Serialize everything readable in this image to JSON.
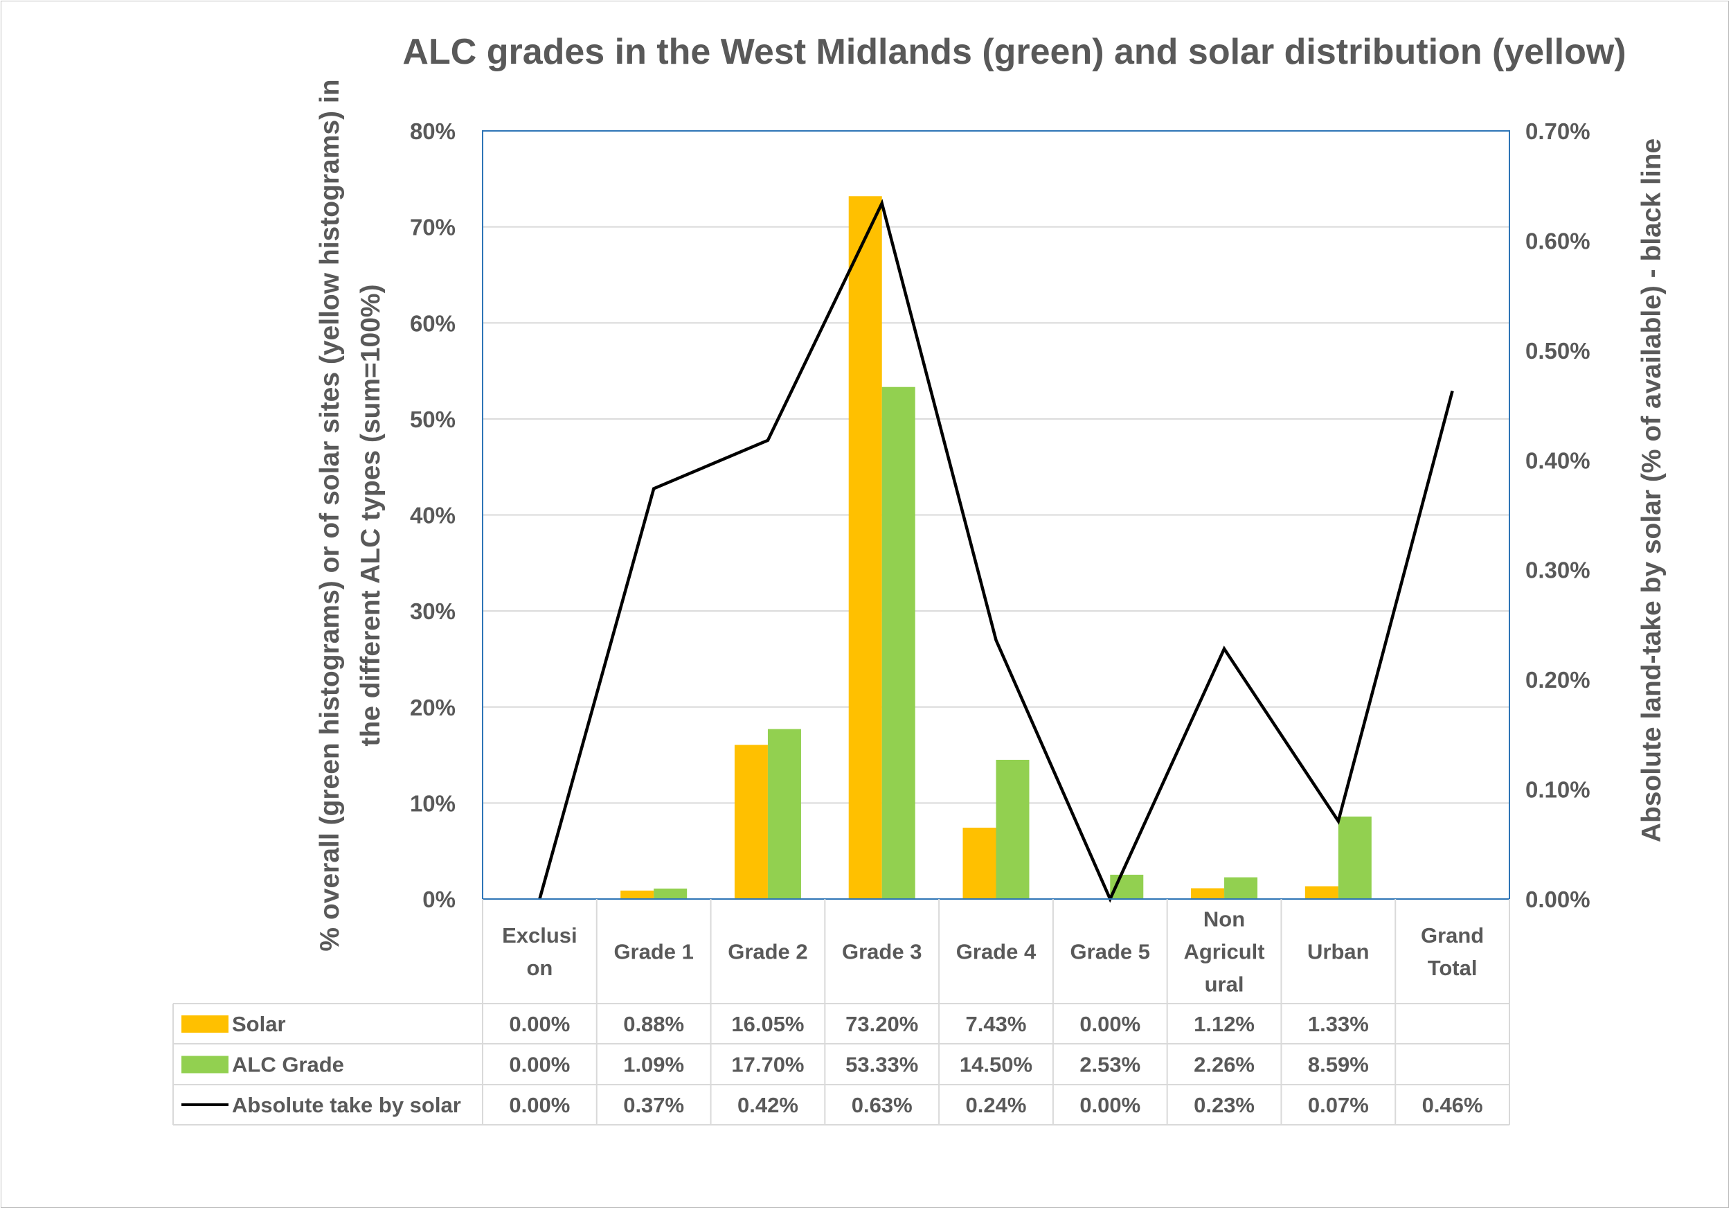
{
  "chart_data": {
    "type": "bar",
    "title": "ALC grades in the West Midlands (green) and solar distribution (yellow)",
    "ylabel": [
      "% overall (green histograms) or of solar sites (yellow histograms) in",
      "the different ALC types (sum=100%)"
    ],
    "y2label": "Absolute land-take by solar (% of available) - black line",
    "ylim": [
      0,
      80
    ],
    "y2lim": [
      0,
      0.7
    ],
    "yticks": [
      "0%",
      "10%",
      "20%",
      "30%",
      "40%",
      "50%",
      "60%",
      "70%",
      "80%"
    ],
    "y2ticks": [
      "0.00%",
      "0.10%",
      "0.20%",
      "0.30%",
      "0.40%",
      "0.50%",
      "0.60%",
      "0.70%"
    ],
    "categories": [
      [
        "Exclusi",
        "on"
      ],
      [
        "Grade 1"
      ],
      [
        "Grade 2"
      ],
      [
        "Grade 3"
      ],
      [
        "Grade 4"
      ],
      [
        "Grade 5"
      ],
      [
        "Non",
        "Agricult",
        "ural"
      ],
      [
        "Urban"
      ],
      [
        "Grand",
        "Total"
      ]
    ],
    "grid": true,
    "legend": "data table below chart",
    "series": [
      {
        "name": "Solar",
        "kind": "bar",
        "axis": "left",
        "color": "#FFC000",
        "values": [
          0.0,
          0.88,
          16.05,
          73.2,
          7.43,
          0.0,
          1.12,
          1.33,
          null
        ],
        "labels": [
          "0.00%",
          "0.88%",
          "16.05%",
          "73.20%",
          "7.43%",
          "0.00%",
          "1.12%",
          "1.33%",
          ""
        ]
      },
      {
        "name": "ALC Grade",
        "kind": "bar",
        "axis": "left",
        "color": "#92D050",
        "values": [
          0.0,
          1.09,
          17.7,
          53.33,
          14.5,
          2.53,
          2.26,
          8.59,
          null
        ],
        "labels": [
          "0.00%",
          "1.09%",
          "17.70%",
          "53.33%",
          "14.50%",
          "2.53%",
          "2.26%",
          "8.59%",
          ""
        ]
      },
      {
        "name": "Absolute take by solar",
        "kind": "line",
        "axis": "right",
        "color": "#000000",
        "values": [
          0.0,
          0.374,
          0.418,
          0.634,
          0.236,
          0.0,
          0.228,
          0.071,
          0.463
        ],
        "labels": [
          "0.00%",
          "0.37%",
          "0.42%",
          "0.63%",
          "0.24%",
          "0.00%",
          "0.23%",
          "0.07%",
          "0.46%"
        ]
      }
    ]
  },
  "colors": {
    "text": "#595959",
    "plot_border": "#2E75B6",
    "gridline": "#d9d9d9",
    "table_line": "#d9d9d9"
  }
}
